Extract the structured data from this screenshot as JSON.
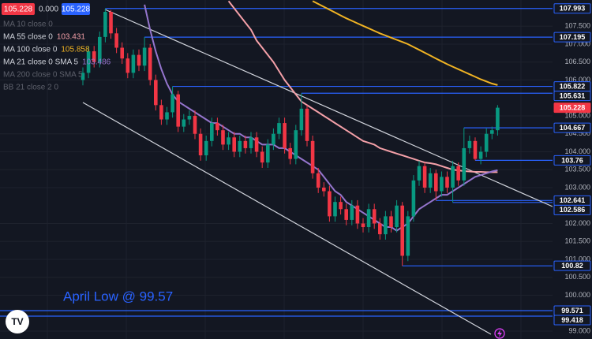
{
  "chart_data": {
    "type": "candlestick",
    "header": {
      "price": "105.228",
      "change": "0.000",
      "bid": "105.228"
    },
    "annotation": "April Low @ 99.57",
    "ylim": [
      98.78,
      108.23
    ],
    "yticks": [
      {
        "value": 107.5,
        "label": "107.500"
      },
      {
        "value": 107,
        "label": "107.000"
      },
      {
        "value": 106.5,
        "label": "106.500"
      },
      {
        "value": 106,
        "label": "106.000"
      },
      {
        "value": 105,
        "label": "105.000"
      },
      {
        "value": 104.5,
        "label": "104.500"
      },
      {
        "value": 104,
        "label": "104.000"
      },
      {
        "value": 103.5,
        "label": "103.500"
      },
      {
        "value": 103,
        "label": "103.000"
      },
      {
        "value": 102,
        "label": "102.000"
      },
      {
        "value": 101.5,
        "label": "101.500"
      },
      {
        "value": 101,
        "label": "101.000"
      },
      {
        "value": 100.5,
        "label": "100.500"
      },
      {
        "value": 100,
        "label": "100.000"
      },
      {
        "value": 99,
        "label": "99.000"
      }
    ],
    "grid": true,
    "up_color": "#089981",
    "down_color": "#f23645",
    "level_color": "#2962ff",
    "levels": [
      107.993,
      107.195,
      105.822,
      105.631,
      105.228,
      104.667,
      103.76,
      102.641,
      102.586,
      100.82,
      99.571,
      99.418
    ],
    "open": [
      106.0,
      106.2,
      106.8,
      106.5,
      107.2,
      107.9,
      107.3,
      106.9,
      106.6,
      106.2,
      106.7,
      106.4,
      106.9,
      106.0,
      105.3,
      104.9,
      105.1,
      105.6,
      104.7,
      104.9,
      105.0,
      104.5,
      103.9,
      104.3,
      104.8,
      104.6,
      104.2,
      104.4,
      104.0,
      104.3,
      104.1,
      104.4,
      104.0,
      103.7,
      104.2,
      104.5,
      104.8,
      104.1,
      103.8,
      104.6,
      105.2,
      104.3,
      103.4,
      103.0,
      102.9,
      102.2,
      102.6,
      102.4,
      102.1,
      102.5,
      102.0,
      101.9,
      102.4,
      102.0,
      101.7,
      102.2,
      101.9,
      102.5,
      101.1,
      102.2,
      103.2,
      103.6,
      103.0,
      103.4,
      102.9,
      103.3,
      103.0,
      103.6,
      103.2,
      104.1,
      104.3,
      103.8,
      104.0,
      104.5,
      104.6
    ],
    "high": [
      106.35,
      106.95,
      106.95,
      107.35,
      107.993,
      107.95,
      107.45,
      107.05,
      106.75,
      106.85,
      106.85,
      107.195,
      107.0,
      106.15,
      105.45,
      105.25,
      105.822,
      105.7,
      105.05,
      105.15,
      105.15,
      104.65,
      104.45,
      104.95,
      104.95,
      104.75,
      104.55,
      104.55,
      104.45,
      104.45,
      104.55,
      104.55,
      104.15,
      104.35,
      104.65,
      104.95,
      104.95,
      104.25,
      104.75,
      105.631,
      105.3,
      104.45,
      103.55,
      103.15,
      103.05,
      102.75,
      102.75,
      102.55,
      102.65,
      102.65,
      102.15,
      102.55,
      102.55,
      102.15,
      102.35,
      102.35,
      102.65,
      102.6,
      102.35,
      103.35,
      103.75,
      103.7,
      103.55,
      103.5,
      103.45,
      103.45,
      103.75,
      103.7,
      104.667,
      104.45,
      104.4,
      104.15,
      104.65,
      104.7,
      105.3
    ],
    "low": [
      105.85,
      106.05,
      106.35,
      106.35,
      107.05,
      107.15,
      106.75,
      106.45,
      106.05,
      106.05,
      106.25,
      106.25,
      105.85,
      105.15,
      104.75,
      104.75,
      104.95,
      104.55,
      104.55,
      104.75,
      104.35,
      103.75,
      103.75,
      104.15,
      104.45,
      104.05,
      104.05,
      103.85,
      103.85,
      103.95,
      103.95,
      103.85,
      103.55,
      103.55,
      104.05,
      104.35,
      103.95,
      103.65,
      103.65,
      104.45,
      104.15,
      103.25,
      102.85,
      102.75,
      102.05,
      102.05,
      102.25,
      101.95,
      101.95,
      101.85,
      101.75,
      101.75,
      101.85,
      101.55,
      101.55,
      101.75,
      101.75,
      100.82,
      100.95,
      102.05,
      103.05,
      102.85,
      102.85,
      102.641,
      102.75,
      102.85,
      102.586,
      103.05,
      103.05,
      103.95,
      103.76,
      103.65,
      103.85,
      104.35,
      104.45
    ],
    "close": [
      106.2,
      106.8,
      106.5,
      107.2,
      107.9,
      107.3,
      106.9,
      106.6,
      106.2,
      106.7,
      106.4,
      106.9,
      106.0,
      105.3,
      104.9,
      105.1,
      105.6,
      104.7,
      104.9,
      105.0,
      104.5,
      103.9,
      104.3,
      104.8,
      104.6,
      104.2,
      104.4,
      104.0,
      104.3,
      104.1,
      104.4,
      104.0,
      103.7,
      104.2,
      104.5,
      104.8,
      104.1,
      103.8,
      104.6,
      105.2,
      104.3,
      103.4,
      103.0,
      102.9,
      102.2,
      102.6,
      102.4,
      102.1,
      102.5,
      102.0,
      101.9,
      102.4,
      102.0,
      101.7,
      102.2,
      101.9,
      102.5,
      101.1,
      102.2,
      103.2,
      103.6,
      103.0,
      103.4,
      102.9,
      103.3,
      103.0,
      103.6,
      103.2,
      104.1,
      104.3,
      103.8,
      104.0,
      104.5,
      104.6,
      105.228
    ],
    "series": [
      {
        "name": "MA 10 close 0",
        "hidden": true
      },
      {
        "name": "MA 55 close 0",
        "value_label": "103.431",
        "color": "#f4a0a8",
        "values": [
          null,
          null,
          null,
          null,
          null,
          null,
          null,
          null,
          null,
          null,
          null,
          null,
          null,
          null,
          null,
          null,
          null,
          null,
          null,
          null,
          null,
          null,
          null,
          null,
          null,
          null,
          108.2,
          108.0,
          107.8,
          107.6,
          107.4,
          107.1,
          106.9,
          106.7,
          106.5,
          106.25,
          106.0,
          105.8,
          105.6,
          105.4,
          105.3,
          105.2,
          105.1,
          105.0,
          104.9,
          104.8,
          104.7,
          104.6,
          104.5,
          104.4,
          104.3,
          104.25,
          104.2,
          104.1,
          104.05,
          104.0,
          103.95,
          103.9,
          103.85,
          103.8,
          103.75,
          103.7,
          103.68,
          103.65,
          103.6,
          103.55,
          103.5,
          103.48,
          103.46,
          103.45,
          103.44,
          103.44,
          103.43,
          103.43,
          103.431
        ]
      },
      {
        "name": "MA 100 close 0",
        "value_label": "105.858",
        "color": "#f0b323",
        "values": [
          null,
          null,
          null,
          null,
          null,
          null,
          null,
          null,
          null,
          null,
          null,
          null,
          null,
          null,
          null,
          null,
          null,
          null,
          null,
          null,
          null,
          null,
          null,
          null,
          null,
          null,
          null,
          null,
          null,
          null,
          null,
          null,
          null,
          null,
          null,
          null,
          null,
          null,
          null,
          null,
          null,
          108.2,
          108.12,
          108.04,
          107.96,
          107.88,
          107.8,
          107.72,
          107.65,
          107.58,
          107.51,
          107.44,
          107.37,
          107.3,
          107.24,
          107.18,
          107.12,
          107.06,
          107.0,
          106.92,
          106.84,
          106.76,
          106.68,
          106.6,
          106.52,
          106.44,
          106.37,
          106.3,
          106.23,
          106.16,
          106.09,
          106.02,
          105.96,
          105.9,
          105.858
        ]
      },
      {
        "name": "MA 21 close 0 SMA 5",
        "value_label": "103.486",
        "color": "#9575cd",
        "values": [
          null,
          null,
          null,
          null,
          null,
          null,
          null,
          null,
          null,
          null,
          null,
          108.1,
          107.4,
          106.8,
          106.3,
          105.9,
          105.6,
          105.4,
          105.3,
          105.2,
          105.1,
          105.0,
          104.9,
          104.8,
          104.8,
          104.7,
          104.6,
          104.5,
          104.5,
          104.4,
          104.4,
          104.3,
          104.2,
          104.2,
          104.2,
          104.1,
          104.1,
          104.0,
          103.9,
          103.8,
          103.7,
          103.6,
          103.5,
          103.3,
          103.1,
          102.9,
          102.8,
          102.6,
          102.5,
          102.4,
          102.3,
          102.2,
          102.1,
          102.0,
          101.9,
          101.9,
          101.8,
          101.9,
          102.0,
          102.2,
          102.4,
          102.5,
          102.6,
          102.7,
          102.8,
          102.8,
          102.9,
          103.0,
          103.1,
          103.2,
          103.3,
          103.35,
          103.4,
          103.45,
          103.486
        ]
      },
      {
        "name": "MA 200 close 0 SMA 5",
        "hidden": true
      },
      {
        "name": "BB 21 close 2 0",
        "hidden": true
      }
    ]
  }
}
